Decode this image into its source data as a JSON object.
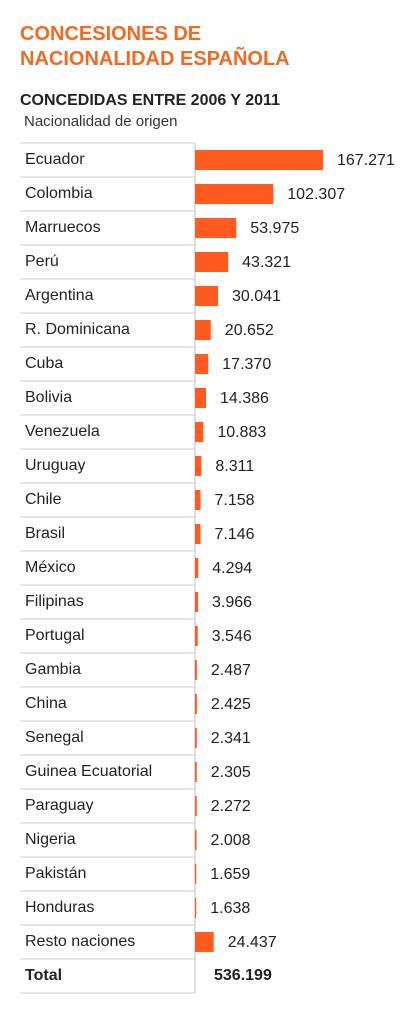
{
  "chart_data": {
    "type": "bar",
    "orientation": "horizontal",
    "title": "CONCESIONES DE NACIONALIDAD ESPAÑOLA",
    "subtitle": "CONCEDIDAS ENTRE 2006 Y 2011",
    "category_label": "Nacionalidad de origen",
    "color": "#ff5a1f",
    "categories": [
      "Ecuador",
      "Colombia",
      "Marruecos",
      "Perú",
      "Argentina",
      "R. Dominicana",
      "Cuba",
      "Bolivia",
      "Venezuela",
      "Uruguay",
      "Chile",
      "Brasil",
      "México",
      "Filipinas",
      "Portugal",
      "Gambia",
      "China",
      "Senegal",
      "Guinea Ecuatorial",
      "Paraguay",
      "Nigeria",
      "Pakistán",
      "Honduras",
      "Resto naciones"
    ],
    "values": [
      167271,
      102307,
      53975,
      43321,
      30041,
      20652,
      17370,
      14386,
      10883,
      8311,
      7158,
      7146,
      4294,
      3966,
      3546,
      2487,
      2425,
      2341,
      2305,
      2272,
      2008,
      1659,
      1638,
      24437
    ],
    "value_labels": [
      "167.271",
      "102.307",
      "53.975",
      "43.321",
      "30.041",
      "20.652",
      "17.370",
      "14.386",
      "10.883",
      "8.311",
      "7.158",
      "7.146",
      "4.294",
      "3.966",
      "3.546",
      "2.487",
      "2.425",
      "2.341",
      "2.305",
      "2.272",
      "2.008",
      "1.659",
      "1.638",
      "24.437"
    ],
    "total": {
      "label": "Total",
      "value": 536199,
      "value_label": "536.199"
    }
  }
}
